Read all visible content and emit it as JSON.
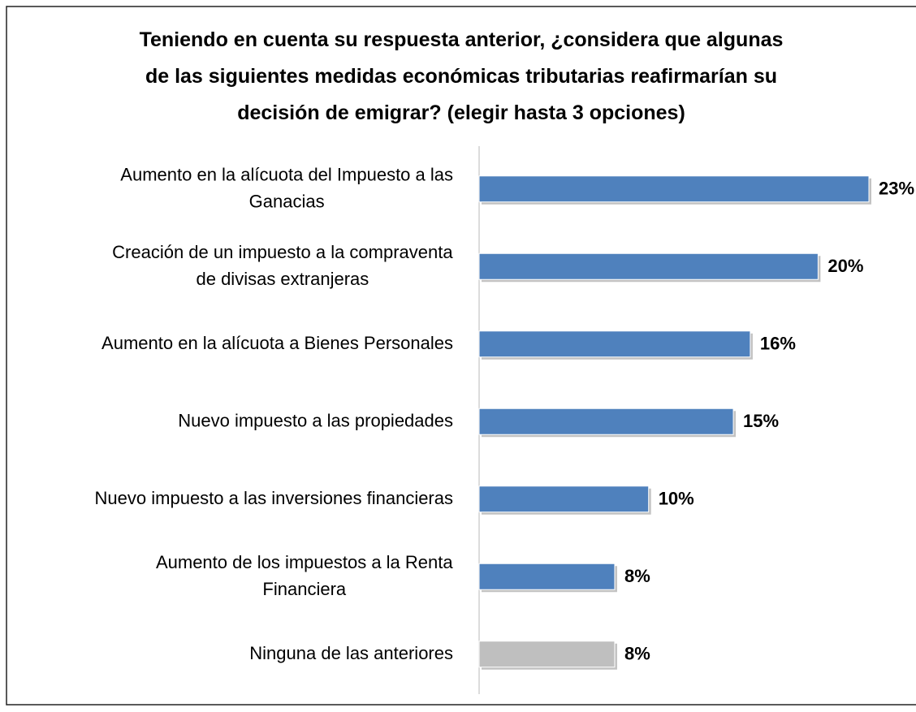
{
  "chart_data": {
    "type": "hbar",
    "title": "Teniendo en cuenta su respuesta anterior,  ¿considera que algunas\nde las siguientes medidas económicas tributarias reafirmarían su\ndecisión de emigrar? (elegir hasta 3 opciones)",
    "categories": [
      "Aumento en la alícuota del Impuesto a las\nGanacias",
      "Creación de un impuesto a la compraventa\nde divisas extranjeras",
      "Aumento en la alícuota a Bienes Personales",
      "Nuevo impuesto a las propiedades",
      "Nuevo impuesto a las inversiones financieras",
      "Aumento de los impuestos a la Renta\nFinanciera",
      "Ninguna de las anteriores"
    ],
    "values": [
      23,
      20,
      16,
      15,
      10,
      8,
      8
    ],
    "value_labels": [
      "23%",
      "20%",
      "16%",
      "15%",
      "10%",
      "8%",
      "8%"
    ],
    "colors": [
      "#4f81bd",
      "#4f81bd",
      "#4f81bd",
      "#4f81bd",
      "#4f81bd",
      "#4f81bd",
      "#bfbfbf"
    ]
  }
}
